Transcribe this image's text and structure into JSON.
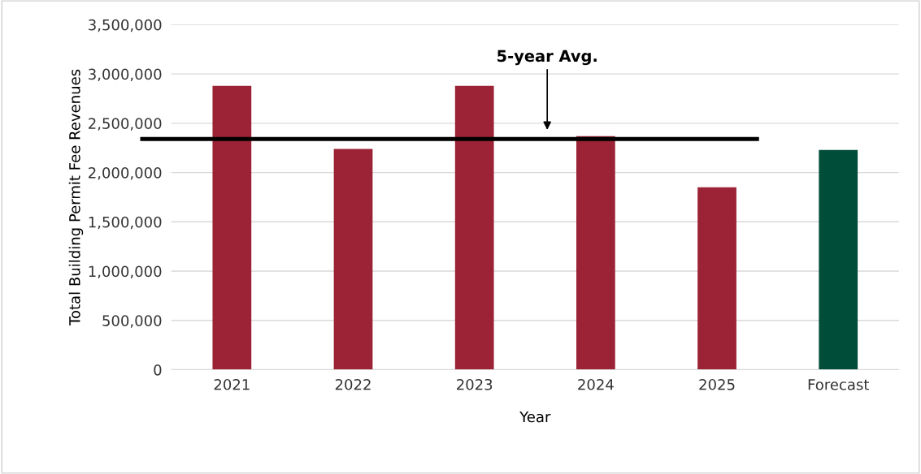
{
  "chart_data": {
    "type": "bar",
    "xlabel": "Year",
    "ylabel": "Total Building Permit Fee Revenues",
    "categories": [
      "2021",
      "2022",
      "2023",
      "2024",
      "2025",
      "Forecast"
    ],
    "values": [
      2880000,
      2240000,
      2880000,
      2370000,
      1850000,
      2230000
    ],
    "colors": [
      "#9b2335",
      "#9b2335",
      "#9b2335",
      "#9b2335",
      "#9b2335",
      "#004d3a"
    ],
    "ylim": [
      0,
      3500000
    ],
    "yticks": [
      {
        "value": 0,
        "label": "0"
      },
      {
        "value": 500000,
        "label": "500,000"
      },
      {
        "value": 1000000,
        "label": "1,000,000"
      },
      {
        "value": 1500000,
        "label": "1,500,000"
      },
      {
        "value": 2000000,
        "label": "2,000,000"
      },
      {
        "value": 2500000,
        "label": "2,500,000"
      },
      {
        "value": 3000000,
        "label": "3,000,000"
      },
      {
        "value": 3500000,
        "label": "3,500,000"
      }
    ],
    "grid": "y",
    "ref_lines": [
      {
        "axis": "y",
        "value": 2340000,
        "label": "5-year Avg.",
        "color": "#000000"
      }
    ]
  }
}
